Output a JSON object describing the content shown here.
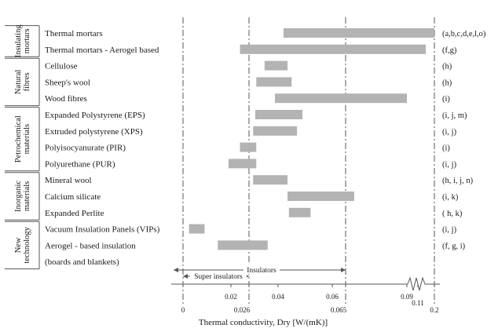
{
  "chart_data": {
    "type": "range-bar",
    "xlabel": "Thermal conductivity, Dry [W/(mK)]",
    "x_scale": "piecewise",
    "axis_breakpoints": [
      0,
      0.02,
      0.026,
      0.04,
      0.06,
      0.065,
      0.09,
      0.11,
      0.2
    ],
    "x_ticks": [
      {
        "value": 0,
        "label": "0"
      },
      {
        "value": 0.02,
        "label": "0.02"
      },
      {
        "value": 0.026,
        "label": "0.026"
      },
      {
        "value": 0.04,
        "label": "0.04"
      },
      {
        "value": 0.06,
        "label": "0.06"
      },
      {
        "value": 0.065,
        "label": "0.065"
      },
      {
        "value": 0.09,
        "label": "0.09"
      },
      {
        "value": 0.11,
        "label": "0.11"
      },
      {
        "value": 0.2,
        "label": "0.2"
      }
    ],
    "reference_lines": [
      0,
      0.026,
      0.065,
      0.2
    ],
    "zones": [
      {
        "label": "Super insulators",
        "from": 0,
        "to": 0.026
      },
      {
        "label": "Insulators",
        "from": 0,
        "to": 0.065
      }
    ],
    "bar_color": "#b3b3b3",
    "groups": [
      {
        "name": "Insulating mortars",
        "rows": [
          {
            "label": "Thermal mortars",
            "min": 0.042,
            "max": 0.2,
            "refs": "(a,b,c,d,e,l,o)"
          },
          {
            "label": "Thermal mortars - Aerogel based",
            "min": 0.023,
            "max": 0.153,
            "refs": "(f,g)"
          }
        ]
      },
      {
        "name": "Natural fibres",
        "rows": [
          {
            "label": "Cellulose",
            "min": 0.0335,
            "max": 0.0435,
            "refs": "(h)"
          },
          {
            "label": "Sheep's wool",
            "min": 0.0295,
            "max": 0.045,
            "refs": "(h)"
          },
          {
            "label": "Wood fibres",
            "min": 0.0385,
            "max": 0.09,
            "refs": "(i)"
          }
        ]
      },
      {
        "name": "Petrochemical materials",
        "rows": [
          {
            "label": "Expanded Polystyrene (EPS)",
            "min": 0.029,
            "max": 0.049,
            "refs": "(i, j, m)"
          },
          {
            "label": "Extruded polystyrene (XPS)",
            "min": 0.028,
            "max": 0.047,
            "refs": "(i, j)"
          },
          {
            "label": "Polyisocyanurate (PIR)",
            "min": 0.023,
            "max": 0.0295,
            "refs": "(i)"
          },
          {
            "label": "Polyurethane (PUR)",
            "min": 0.019,
            "max": 0.0295,
            "refs": "(i, j)"
          }
        ]
      },
      {
        "name": "Inorganic materials",
        "rows": [
          {
            "label": "Mineral wool",
            "min": 0.028,
            "max": 0.0435,
            "refs": "(h, i, j, n)"
          },
          {
            "label": "Calcium silicate",
            "min": 0.0435,
            "max": 0.0685,
            "refs": "(i, k)"
          },
          {
            "label": "Expanded Perlite",
            "min": 0.044,
            "max": 0.052,
            "refs": "( h, k)"
          }
        ]
      },
      {
        "name": "New technology",
        "rows": [
          {
            "label": "Vacuum Insulation Panels (VIPs)",
            "min": 0.0025,
            "max": 0.009,
            "refs": "(i, j)"
          },
          {
            "label": "Aerogel - based insulation",
            "min": 0.0145,
            "max": 0.035,
            "refs": "(f, g, i)"
          },
          {
            "label": "(boards and blankets)",
            "min": null,
            "max": null,
            "refs": ""
          }
        ]
      }
    ]
  }
}
